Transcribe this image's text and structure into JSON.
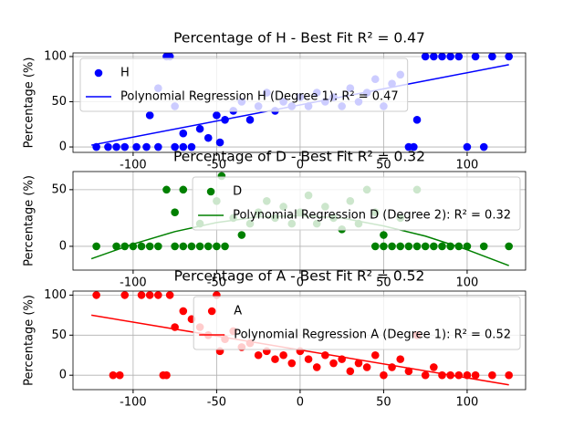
{
  "chart_data": [
    {
      "type": "scatter",
      "title": "Percentage of H - Best Fit R² = 0.47",
      "y_label": "Percentage (%)",
      "xlim": [
        -136,
        135
      ],
      "ylim": [
        -6,
        104
      ],
      "xticks": [
        -100,
        -50,
        0,
        50,
        100
      ],
      "yticks": [
        0,
        50,
        100
      ],
      "grid": true,
      "legend_loc": "upper left",
      "series": [
        {
          "name": "H",
          "color": "#0000ff",
          "style": "marker",
          "x": [
            -122,
            -115,
            -110,
            -105,
            -98,
            -92,
            -85,
            -80,
            -78,
            -75,
            -70,
            -65,
            -60,
            -55,
            -50,
            -48,
            -45,
            -40,
            -35,
            -30,
            -25,
            -20,
            -15,
            -10,
            -5,
            0,
            5,
            10,
            15,
            20,
            25,
            30,
            35,
            40,
            45,
            50,
            55,
            60,
            65,
            68,
            70,
            75,
            80,
            85,
            90,
            95,
            100,
            105,
            110,
            115,
            125,
            -85,
            -90,
            -75,
            -70
          ],
          "values": [
            0,
            0,
            0,
            0,
            0,
            0,
            0,
            100,
            100,
            0,
            0,
            0,
            20,
            10,
            35,
            5,
            30,
            40,
            50,
            30,
            45,
            60,
            40,
            50,
            45,
            55,
            45,
            60,
            50,
            55,
            45,
            65,
            50,
            60,
            75,
            45,
            70,
            80,
            0,
            0,
            30,
            100,
            100,
            100,
            100,
            100,
            0,
            100,
            0,
            100,
            100,
            65,
            35,
            45,
            15
          ]
        },
        {
          "name": "Polynomial Regression H (Degree 1): R² = 0.47",
          "color": "#0000ff",
          "style": "line",
          "x": [
            -125,
            125
          ],
          "values": [
            2,
            91
          ]
        }
      ]
    },
    {
      "type": "scatter",
      "title": "Percentage of D - Best Fit R² = 0.32",
      "y_label": "Percentage (%)",
      "xlim": [
        -136,
        135
      ],
      "ylim": [
        -21,
        66
      ],
      "xticks": [
        -100,
        -50,
        0,
        50,
        100
      ],
      "yticks": [
        0,
        50
      ],
      "grid": true,
      "legend_loc": "upper right",
      "series": [
        {
          "name": "D",
          "color": "#008000",
          "style": "marker",
          "x": [
            -122,
            -110,
            -105,
            -100,
            -95,
            -90,
            -85,
            -75,
            -70,
            -65,
            -60,
            -55,
            -50,
            -45,
            45,
            50,
            55,
            60,
            65,
            70,
            75,
            80,
            85,
            90,
            95,
            100,
            110,
            125,
            -80,
            -75,
            -70,
            -60,
            -50,
            -47,
            -40,
            -35,
            -30,
            -25,
            -20,
            -15,
            -10,
            -5,
            0,
            5,
            10,
            15,
            20,
            25,
            30,
            35,
            40,
            45,
            50,
            60,
            70
          ],
          "values": [
            0,
            0,
            0,
            0,
            0,
            0,
            0,
            0,
            0,
            0,
            0,
            0,
            0,
            0,
            0,
            0,
            0,
            0,
            0,
            0,
            0,
            0,
            0,
            0,
            0,
            0,
            0,
            0,
            50,
            30,
            50,
            20,
            40,
            62,
            25,
            10,
            20,
            30,
            40,
            25,
            35,
            20,
            30,
            45,
            20,
            35,
            25,
            15,
            40,
            20,
            50,
            30,
            10,
            25,
            50
          ]
        },
        {
          "name": "Polynomial Regression D (Degree 2): R² = 0.32",
          "color": "#008000",
          "style": "line",
          "x": [
            -125,
            -100,
            -75,
            -50,
            -25,
            0,
            25,
            50,
            75,
            100,
            125
          ],
          "values": [
            -11,
            2,
            13,
            21,
            26,
            27,
            25,
            18,
            9,
            -3,
            -17
          ]
        }
      ]
    },
    {
      "type": "scatter",
      "title": "Percentage of A - Best Fit R² = 0.52",
      "y_label": "Percentage (%)",
      "xlim": [
        -136,
        135
      ],
      "ylim": [
        -18,
        105
      ],
      "xticks": [
        -100,
        -50,
        0,
        50,
        100
      ],
      "yticks": [
        0,
        50,
        100
      ],
      "grid": true,
      "legend_loc": "upper right",
      "series": [
        {
          "name": "A",
          "color": "#ff0000",
          "style": "marker",
          "x": [
            -122,
            -112,
            -108,
            -105,
            -95,
            -90,
            -85,
            -82,
            -80,
            -78,
            -75,
            -70,
            -65,
            -60,
            -55,
            -50,
            -48,
            -45,
            -40,
            -35,
            -30,
            -25,
            -20,
            -15,
            -10,
            -5,
            0,
            5,
            10,
            15,
            20,
            25,
            30,
            35,
            40,
            45,
            50,
            55,
            60,
            65,
            70,
            75,
            80,
            85,
            90,
            95,
            100,
            105,
            115,
            125
          ],
          "values": [
            100,
            0,
            0,
            100,
            100,
            100,
            100,
            0,
            0,
            100,
            60,
            80,
            70,
            60,
            50,
            100,
            30,
            45,
            55,
            35,
            40,
            25,
            30,
            20,
            25,
            15,
            30,
            20,
            10,
            25,
            15,
            20,
            5,
            15,
            10,
            25,
            0,
            10,
            20,
            5,
            50,
            0,
            10,
            0,
            0,
            0,
            0,
            0,
            0,
            0
          ]
        },
        {
          "name": "Polynomial Regression A (Degree 1): R² = 0.52",
          "color": "#ff0000",
          "style": "line",
          "x": [
            -125,
            125
          ],
          "values": [
            75,
            -12
          ]
        }
      ]
    }
  ]
}
